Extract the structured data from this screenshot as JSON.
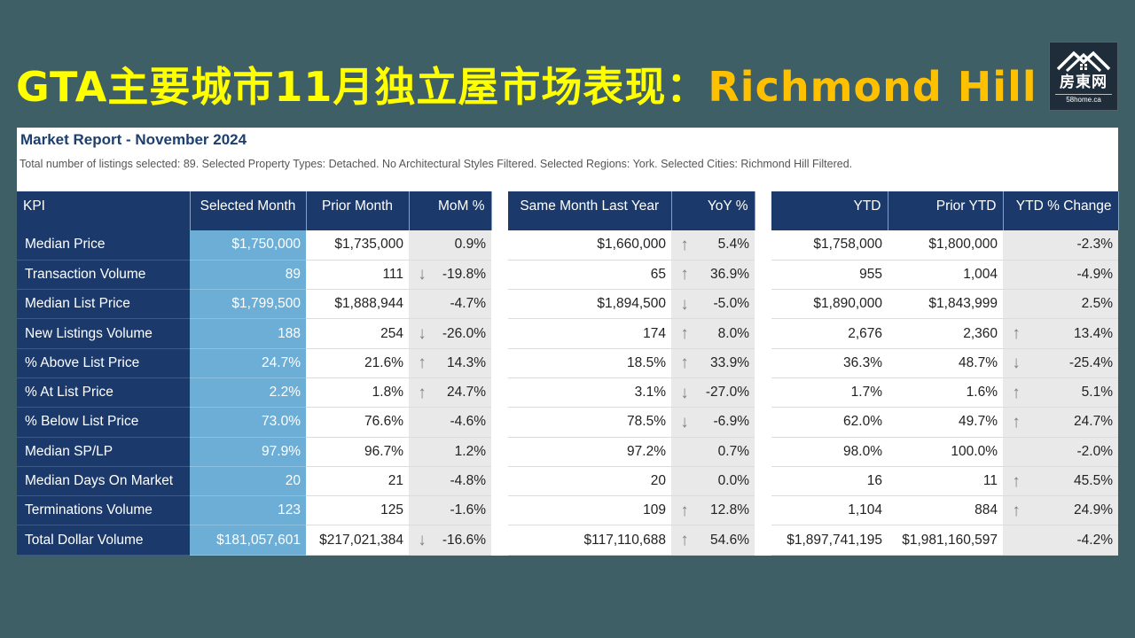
{
  "slide": {
    "title_part1": "GTA主要城市11月独立屋市场表现：",
    "title_part2": "Richmond Hill"
  },
  "logo": {
    "brand": "房東网",
    "site": "58home.ca",
    "icon": "house-roof-icon"
  },
  "report": {
    "title": "Market Report - November 2024",
    "description": "Total number of listings selected: 89. Selected Property Types: Detached. No Architectural Styles Filtered. Selected Regions: York. Selected Cities: Richmond Hill Filtered.",
    "headers": {
      "kpi": "KPI",
      "selected_month": "Selected Month",
      "prior_month": "Prior Month",
      "mom": "MoM %",
      "same_month_last_year": "Same Month Last Year",
      "yoy": "YoY %",
      "ytd": "YTD",
      "prior_ytd": "Prior YTD",
      "ytd_change": "YTD % Change"
    },
    "colors": {
      "header": "#1b3a6b",
      "selected": "#6caed6",
      "pct_bg": "#e9e9e9",
      "arrow": "#7f7f7f"
    },
    "rows": [
      {
        "kpi": "Median Price",
        "sel": "$1,750,000",
        "prior": "$1,735,000",
        "mom": "0.9%",
        "mom_dir": "",
        "last_year": "$1,660,000",
        "yoy": "5.4%",
        "yoy_dir": "up",
        "ytd": "$1,758,000",
        "prior_ytd": "$1,800,000",
        "ytd_chg": "-2.3%",
        "ytd_dir": ""
      },
      {
        "kpi": "Transaction Volume",
        "sel": "89",
        "prior": "111",
        "mom": "-19.8%",
        "mom_dir": "down",
        "last_year": "65",
        "yoy": "36.9%",
        "yoy_dir": "up",
        "ytd": "955",
        "prior_ytd": "1,004",
        "ytd_chg": "-4.9%",
        "ytd_dir": ""
      },
      {
        "kpi": "Median List Price",
        "sel": "$1,799,500",
        "prior": "$1,888,944",
        "mom": "-4.7%",
        "mom_dir": "",
        "last_year": "$1,894,500",
        "yoy": "-5.0%",
        "yoy_dir": "down",
        "ytd": "$1,890,000",
        "prior_ytd": "$1,843,999",
        "ytd_chg": "2.5%",
        "ytd_dir": ""
      },
      {
        "kpi": "New Listings Volume",
        "sel": "188",
        "prior": "254",
        "mom": "-26.0%",
        "mom_dir": "down",
        "last_year": "174",
        "yoy": "8.0%",
        "yoy_dir": "up",
        "ytd": "2,676",
        "prior_ytd": "2,360",
        "ytd_chg": "13.4%",
        "ytd_dir": "up"
      },
      {
        "kpi": "% Above List Price",
        "sel": "24.7%",
        "prior": "21.6%",
        "mom": "14.3%",
        "mom_dir": "up",
        "last_year": "18.5%",
        "yoy": "33.9%",
        "yoy_dir": "up",
        "ytd": "36.3%",
        "prior_ytd": "48.7%",
        "ytd_chg": "-25.4%",
        "ytd_dir": "down"
      },
      {
        "kpi": "% At List Price",
        "sel": "2.2%",
        "prior": "1.8%",
        "mom": "24.7%",
        "mom_dir": "up",
        "last_year": "3.1%",
        "yoy": "-27.0%",
        "yoy_dir": "down",
        "ytd": "1.7%",
        "prior_ytd": "1.6%",
        "ytd_chg": "5.1%",
        "ytd_dir": "up"
      },
      {
        "kpi": "% Below List Price",
        "sel": "73.0%",
        "prior": "76.6%",
        "mom": "-4.6%",
        "mom_dir": "",
        "last_year": "78.5%",
        "yoy": "-6.9%",
        "yoy_dir": "down",
        "ytd": "62.0%",
        "prior_ytd": "49.7%",
        "ytd_chg": "24.7%",
        "ytd_dir": "up"
      },
      {
        "kpi": "Median SP/LP",
        "sel": "97.9%",
        "prior": "96.7%",
        "mom": "1.2%",
        "mom_dir": "",
        "last_year": "97.2%",
        "yoy": "0.7%",
        "yoy_dir": "",
        "ytd": "98.0%",
        "prior_ytd": "100.0%",
        "ytd_chg": "-2.0%",
        "ytd_dir": ""
      },
      {
        "kpi": "Median Days On Market",
        "sel": "20",
        "prior": "21",
        "mom": "-4.8%",
        "mom_dir": "",
        "last_year": "20",
        "yoy": "0.0%",
        "yoy_dir": "",
        "ytd": "16",
        "prior_ytd": "11",
        "ytd_chg": "45.5%",
        "ytd_dir": "up"
      },
      {
        "kpi": "Terminations Volume",
        "sel": "123",
        "prior": "125",
        "mom": "-1.6%",
        "mom_dir": "",
        "last_year": "109",
        "yoy": "12.8%",
        "yoy_dir": "up",
        "ytd": "1,104",
        "prior_ytd": "884",
        "ytd_chg": "24.9%",
        "ytd_dir": "up"
      },
      {
        "kpi": "Total Dollar Volume",
        "sel": "$181,057,601",
        "prior": "$217,021,384",
        "mom": "-16.6%",
        "mom_dir": "down",
        "last_year": "$117,110,688",
        "yoy": "54.6%",
        "yoy_dir": "up",
        "ytd": "$1,897,741,195",
        "prior_ytd": "$1,981,160,597",
        "ytd_chg": "-4.2%",
        "ytd_dir": ""
      }
    ]
  }
}
